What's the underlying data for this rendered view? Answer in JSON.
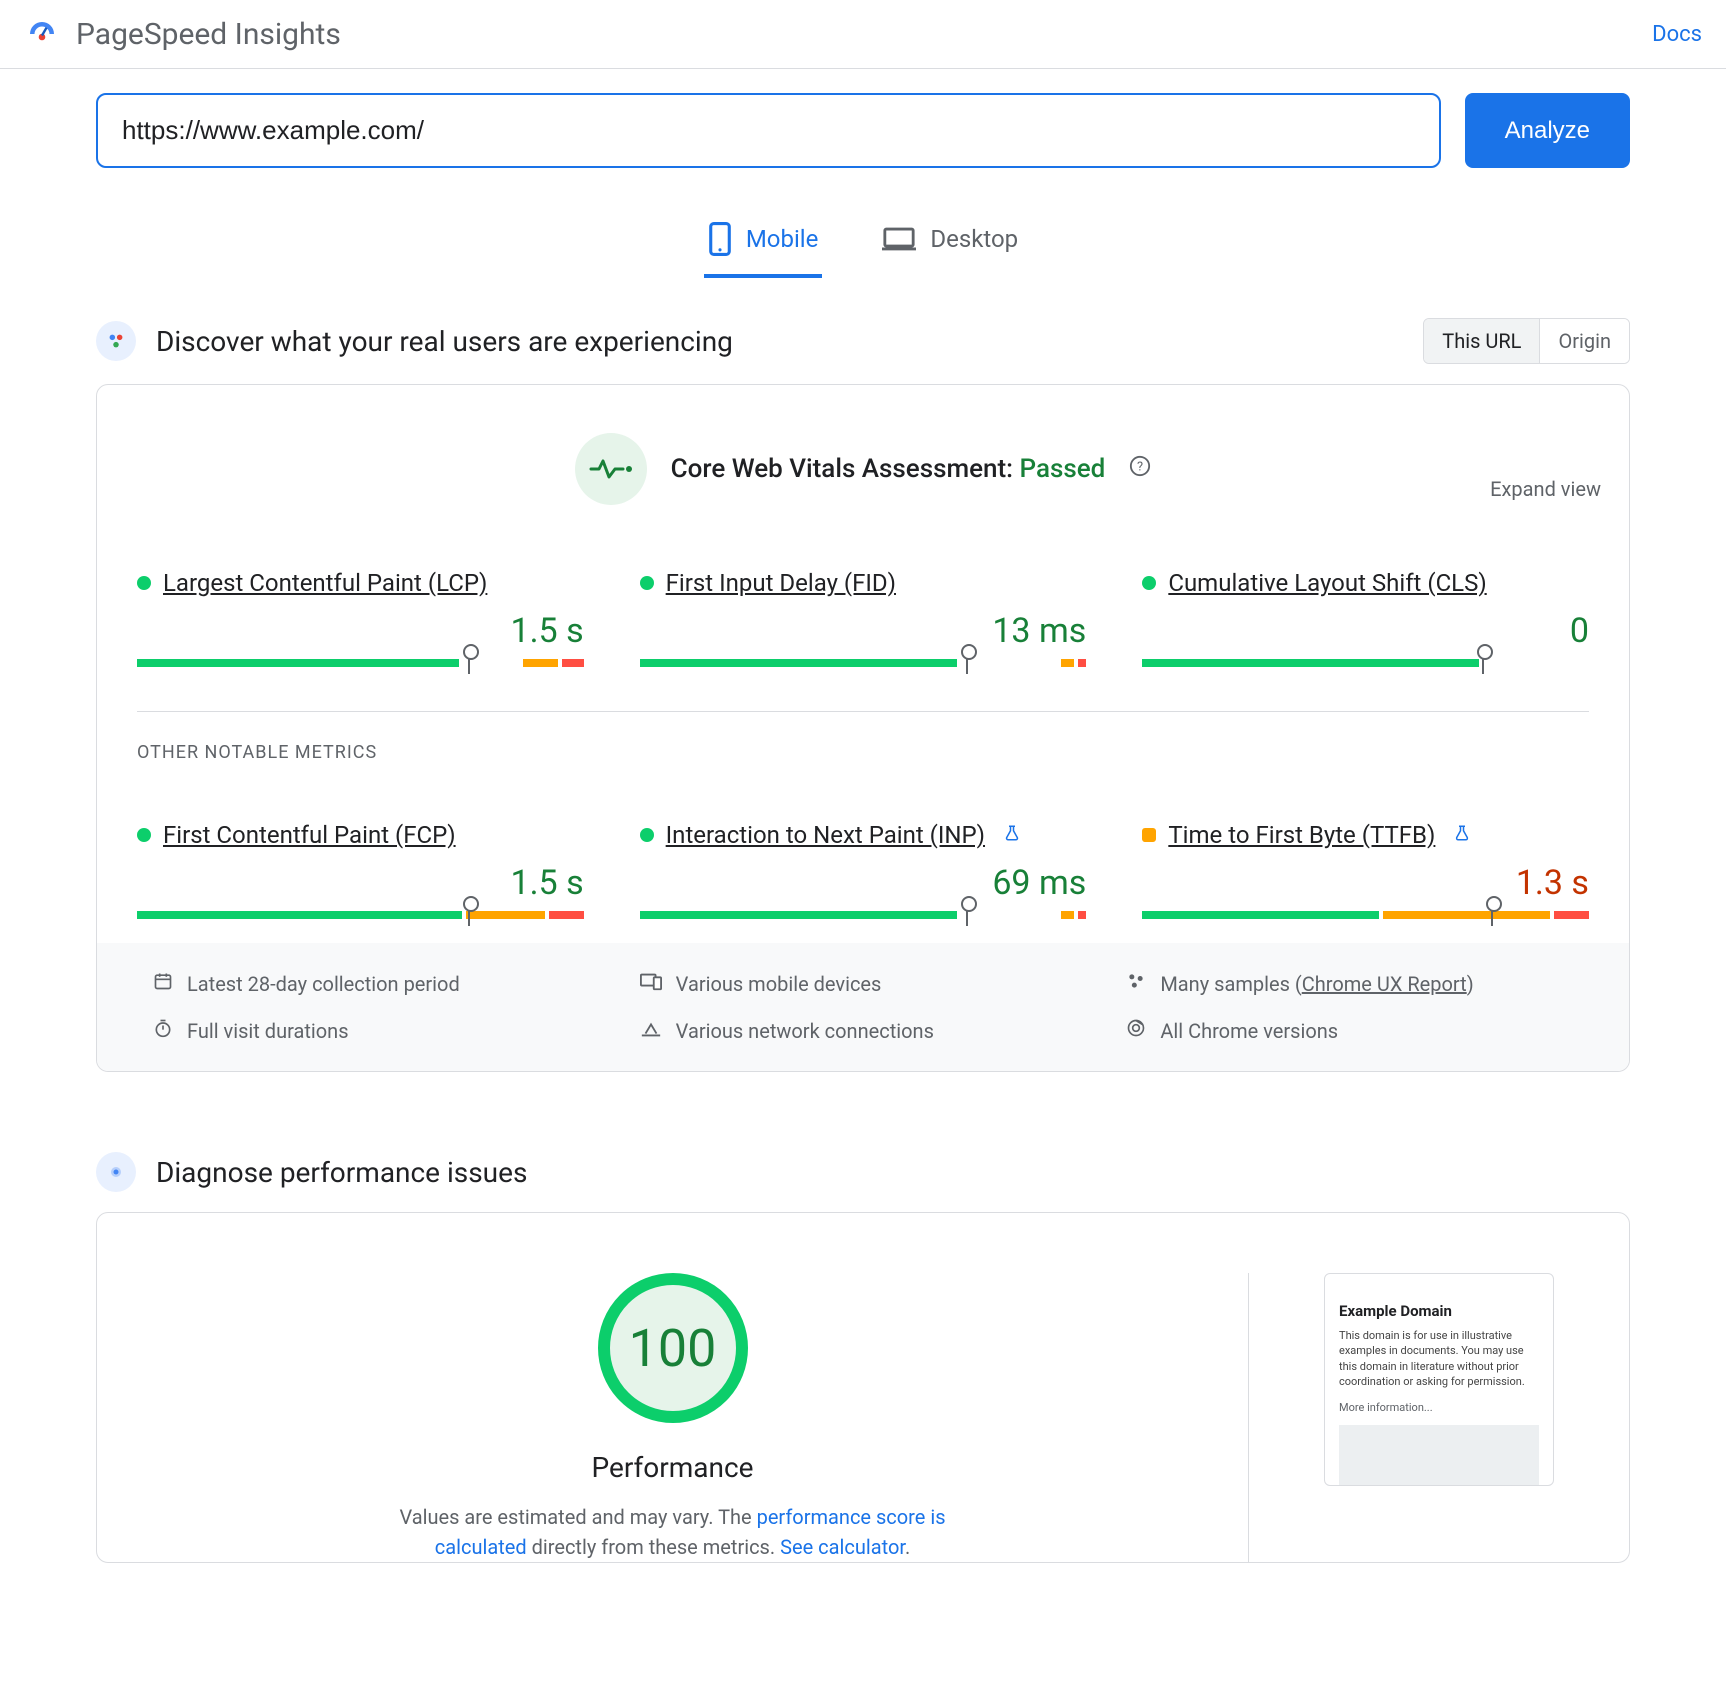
{
  "colors": {
    "blue": "#1a73e8",
    "green": "#0cce6b",
    "green_text": "#188038",
    "orange": "#ffa400",
    "red": "#ff4e42",
    "grey_text": "#5f6368",
    "border": "#dadce0"
  },
  "header": {
    "title": "PageSpeed Insights",
    "docs": "Docs"
  },
  "url_row": {
    "value": "https://www.example.com/",
    "analyze": "Analyze"
  },
  "tabs": {
    "mobile": "Mobile",
    "desktop": "Desktop",
    "active": "mobile"
  },
  "field_section": {
    "heading": "Discover what your real users are experiencing",
    "toggle": {
      "this_url": "This URL",
      "origin": "Origin",
      "active": "this_url"
    },
    "cwv_label": "Core Web Vitals Assessment: ",
    "cwv_status": "Passed",
    "expand": "Expand view",
    "other_label": "OTHER NOTABLE METRICS",
    "metrics_primary": [
      {
        "id": "lcp",
        "dot_color": "#0cce6b",
        "dot_shape": "circle",
        "name": "Largest Contentful Paint (LCP)",
        "value": "1.5 s",
        "value_class": "good",
        "segments": [
          {
            "color": "#0cce6b",
            "pct": 74
          },
          {
            "color": "transparent",
            "pct": 13
          },
          {
            "color": "#ffa400",
            "pct": 8
          },
          {
            "color": "#ff4e42",
            "pct": 5
          }
        ],
        "marker_pct": 74
      },
      {
        "id": "fid",
        "dot_color": "#0cce6b",
        "dot_shape": "circle",
        "name": "First Input Delay (FID)",
        "value": "13 ms",
        "value_class": "good",
        "segments": [
          {
            "color": "#0cce6b",
            "pct": 73
          },
          {
            "color": "transparent",
            "pct": 22
          },
          {
            "color": "#ffa400",
            "pct": 3
          },
          {
            "color": "#ff4e42",
            "pct": 2
          }
        ],
        "marker_pct": 73
      },
      {
        "id": "cls",
        "dot_color": "#0cce6b",
        "dot_shape": "circle",
        "name": "Cumulative Layout Shift (CLS)",
        "value": "0",
        "value_class": "good",
        "segments": [
          {
            "color": "#0cce6b",
            "pct": 76
          },
          {
            "color": "transparent",
            "pct": 24
          }
        ],
        "marker_pct": 76
      }
    ],
    "metrics_other": [
      {
        "id": "fcp",
        "dot_color": "#0cce6b",
        "dot_shape": "circle",
        "name": "First Contentful Paint (FCP)",
        "value": "1.5 s",
        "value_class": "good",
        "segments": [
          {
            "color": "#0cce6b",
            "pct": 74
          },
          {
            "color": "#ffa400",
            "pct": 18
          },
          {
            "color": "#ff4e42",
            "pct": 8
          }
        ],
        "marker_pct": 74
      },
      {
        "id": "inp",
        "dot_color": "#0cce6b",
        "dot_shape": "circle",
        "name": "Interaction to Next Paint (INP)",
        "value": "69 ms",
        "value_class": "good",
        "experimental": true,
        "segments": [
          {
            "color": "#0cce6b",
            "pct": 73
          },
          {
            "color": "transparent",
            "pct": 22
          },
          {
            "color": "#ffa400",
            "pct": 3
          },
          {
            "color": "#ff4e42",
            "pct": 2
          }
        ],
        "marker_pct": 73
      },
      {
        "id": "ttfb",
        "dot_color": "#ffa400",
        "dot_shape": "square",
        "name": "Time to First Byte (TTFB)",
        "value": "1.3 s",
        "value_class": "warn",
        "experimental": true,
        "segments": [
          {
            "color": "#0cce6b",
            "pct": 54
          },
          {
            "color": "#ffa400",
            "pct": 38
          },
          {
            "color": "#ff4e42",
            "pct": 8
          }
        ],
        "marker_pct": 78
      }
    ],
    "info": [
      {
        "icon": "calendar",
        "text": "Latest 28-day collection period"
      },
      {
        "icon": "devices",
        "text": "Various mobile devices"
      },
      {
        "icon": "samples",
        "text_prefix": "Many samples (",
        "link": "Chrome UX Report",
        "text_suffix": ")"
      },
      {
        "icon": "timer",
        "text": "Full visit durations"
      },
      {
        "icon": "network",
        "text": "Various network connections"
      },
      {
        "icon": "chrome",
        "text": "All Chrome versions"
      }
    ]
  },
  "lab_section": {
    "heading": "Diagnose performance issues",
    "score": "100",
    "label": "Performance",
    "desc_prefix": "Values are estimated and may vary. The ",
    "desc_link1": "performance score is calculated",
    "desc_mid": " directly from these metrics. ",
    "desc_link2": "See calculator",
    "desc_suffix": ".",
    "preview": {
      "title": "Example Domain",
      "body": "This domain is for use in illustrative examples in documents. You may use this domain in literature without prior coordination or asking for permission.",
      "more": "More information..."
    }
  }
}
